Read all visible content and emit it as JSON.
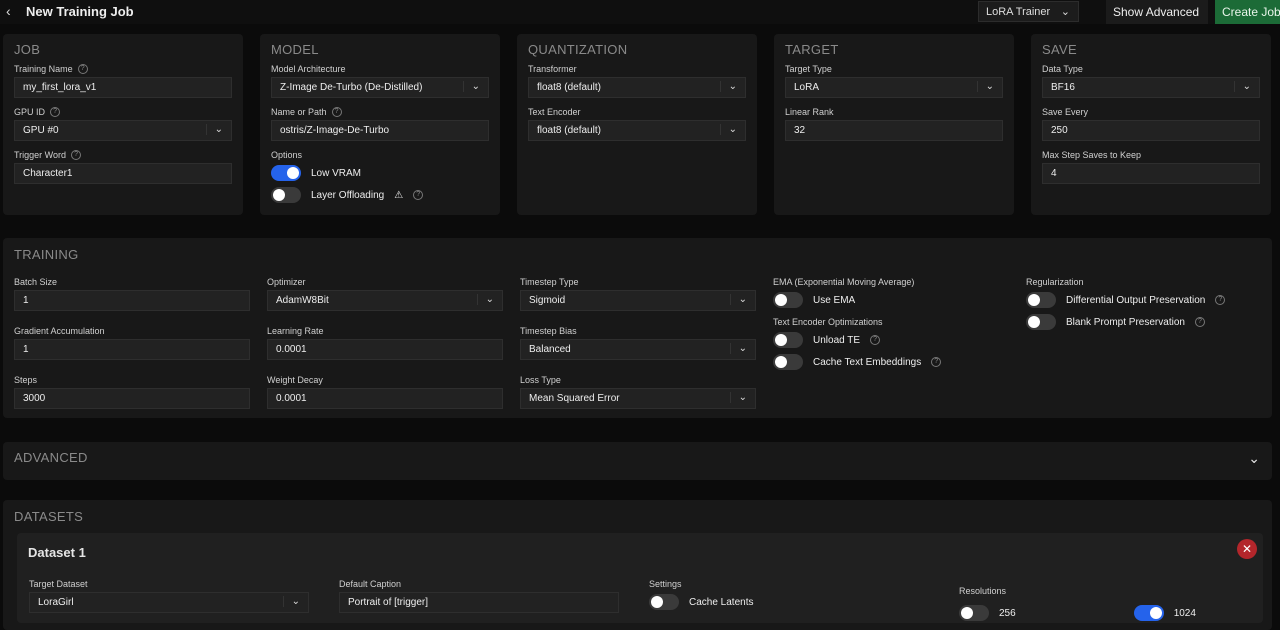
{
  "header": {
    "back_icon": "chevron-left-icon",
    "title": "New Training Job",
    "trainer_select": "LoRA Trainer",
    "show_advanced": "Show Advanced",
    "create_job": "Create Job"
  },
  "colors": {
    "accent": "#2563eb",
    "create": "#1c6b37",
    "danger": "#b3262b"
  },
  "panels": [
    {
      "title": "JOB",
      "fields": [
        {
          "type": "input",
          "label": "Training Name",
          "help": true,
          "value": "my_first_lora_v1"
        },
        {
          "type": "select",
          "label": "GPU ID",
          "help": true,
          "value": "GPU #0"
        },
        {
          "type": "input",
          "label": "Trigger Word",
          "help": true,
          "value": "Character1"
        }
      ]
    },
    {
      "title": "MODEL",
      "fields": [
        {
          "type": "select",
          "label": "Model Architecture",
          "value": "Z-Image De-Turbo (De-Distilled)"
        },
        {
          "type": "input",
          "label": "Name or Path",
          "help": true,
          "value": "ostris/Z-Image-De-Turbo"
        },
        {
          "type": "toggles",
          "label": "Options",
          "toggles": [
            {
              "label": "Low VRAM",
              "on": true
            },
            {
              "label": "Layer Offloading",
              "on": false,
              "warning": "⚠",
              "help": true
            }
          ]
        }
      ]
    },
    {
      "title": "QUANTIZATION",
      "fields": [
        {
          "type": "select",
          "label": "Transformer",
          "value": "float8 (default)"
        },
        {
          "type": "select",
          "label": "Text Encoder",
          "value": "float8 (default)"
        }
      ]
    },
    {
      "title": "TARGET",
      "fields": [
        {
          "type": "select",
          "label": "Target Type",
          "value": "LoRA"
        },
        {
          "type": "input",
          "label": "Linear Rank",
          "value": "32"
        }
      ]
    },
    {
      "title": "SAVE",
      "fields": [
        {
          "type": "select",
          "label": "Data Type",
          "value": "BF16"
        },
        {
          "type": "input",
          "label": "Save Every",
          "value": "250"
        },
        {
          "type": "input",
          "label": "Max Step Saves to Keep",
          "value": "4"
        }
      ]
    }
  ],
  "training": {
    "title": "TRAINING",
    "columns": [
      [
        {
          "type": "input",
          "label": "Batch Size",
          "value": "1"
        },
        {
          "type": "input",
          "label": "Gradient Accumulation",
          "value": "1"
        },
        {
          "type": "input",
          "label": "Steps",
          "value": "3000"
        }
      ],
      [
        {
          "type": "select",
          "label": "Optimizer",
          "value": "AdamW8Bit"
        },
        {
          "type": "input",
          "label": "Learning Rate",
          "value": "0.0001"
        },
        {
          "type": "input",
          "label": "Weight Decay",
          "value": "0.0001"
        }
      ],
      [
        {
          "type": "select",
          "label": "Timestep Type",
          "value": "Sigmoid"
        },
        {
          "type": "select",
          "label": "Timestep Bias",
          "value": "Balanced"
        },
        {
          "type": "select",
          "label": "Loss Type",
          "value": "Mean Squared Error"
        }
      ],
      [
        {
          "type": "toggles",
          "label": "EMA (Exponential Moving Average)",
          "toggles": [
            {
              "label": "Use EMA",
              "on": false
            }
          ]
        },
        {
          "type": "toggles",
          "label": "Text Encoder Optimizations",
          "toggles": [
            {
              "label": "Unload TE",
              "on": false,
              "help": true
            },
            {
              "label": "Cache Text Embeddings",
              "on": false,
              "help": true
            }
          ]
        }
      ],
      [
        {
          "type": "toggles",
          "label": "Regularization",
          "toggles": [
            {
              "label": "Differential Output Preservation",
              "on": false,
              "help": true
            },
            {
              "label": "Blank Prompt Preservation",
              "on": false,
              "help": true
            }
          ]
        }
      ]
    ]
  },
  "advanced": {
    "title": "ADVANCED",
    "chevron_icon": "chevron-down-icon"
  },
  "datasets": {
    "title": "DATASETS",
    "dataset": {
      "name": "Dataset 1",
      "close_icon": "close-icon",
      "target_dataset": {
        "label": "Target Dataset",
        "value": "LoraGirl"
      },
      "default_caption": {
        "label": "Default Caption",
        "value": "Portrait of [trigger]"
      },
      "settings": {
        "label": "Settings",
        "toggles": [
          {
            "label": "Cache Latents",
            "on": false
          }
        ]
      },
      "resolutions": {
        "label": "Resolutions",
        "toggles": [
          {
            "label": "256",
            "on": false
          },
          {
            "label": "1024",
            "on": true
          }
        ]
      }
    }
  }
}
